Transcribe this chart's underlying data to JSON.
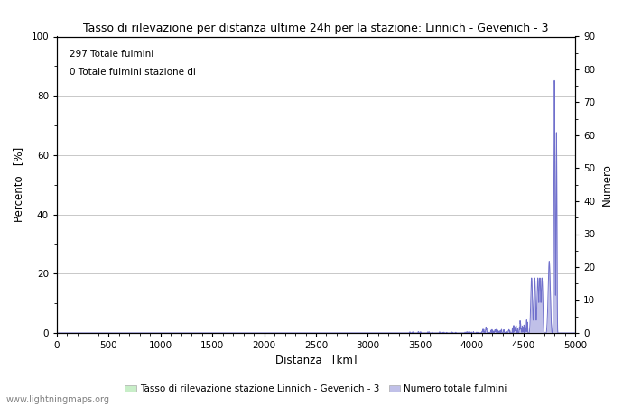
{
  "title": "Tasso di rilevazione per distanza ultime 24h per la stazione: Linnich - Gevenich - 3",
  "annotation_line1": "297 Totale fulmini",
  "annotation_line2": "0 Totale fulmini stazione di",
  "xlabel": "Distanza   [km]",
  "ylabel_left": "Percento   [%]",
  "ylabel_right": "Numero",
  "xlim": [
    0,
    5000
  ],
  "ylim_left": [
    0,
    100
  ],
  "ylim_right": [
    0,
    90
  ],
  "xticks": [
    0,
    500,
    1000,
    1500,
    2000,
    2500,
    3000,
    3500,
    4000,
    4500,
    5000
  ],
  "yticks_left": [
    0,
    20,
    40,
    60,
    80,
    100
  ],
  "yticks_right": [
    0,
    10,
    20,
    30,
    40,
    50,
    60,
    70,
    80,
    90
  ],
  "legend_label_left": "Tasso di rilevazione stazione Linnich - Gevenich - 3",
  "legend_label_right": "Numero totale fulmini",
  "legend_color_left": "#c8eec8",
  "legend_color_right": "#c0c0e8",
  "line_color": "#7070cc",
  "fill_color": "#c0c0e8",
  "bar_color_left": "#c8eec8",
  "background_color": "#ffffff",
  "grid_color": "#c8c8c8",
  "watermark": "www.lightningmaps.org"
}
